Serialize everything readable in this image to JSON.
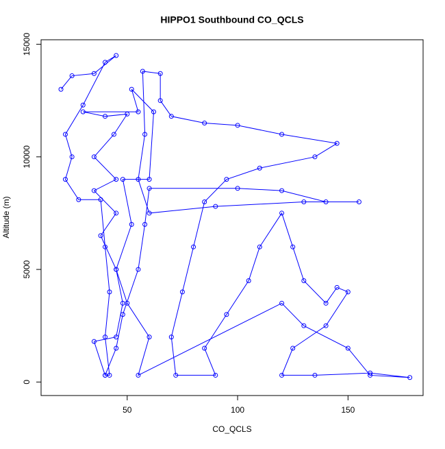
{
  "chart_data": {
    "type": "scatter",
    "title": "HIPPO1 Southbound CO_QCLS",
    "x_label": "CO_QCLS",
    "y_label": "Altitude (m)",
    "color": "#0000ff",
    "connect": true,
    "x": [
      20,
      25,
      35,
      45,
      40,
      30,
      22,
      25,
      22,
      28,
      38,
      40,
      42,
      40,
      42,
      40,
      45,
      48,
      55,
      58,
      60,
      100,
      120,
      140,
      155,
      130,
      90,
      60,
      55,
      58,
      57,
      65,
      65,
      70,
      85,
      100,
      120,
      145,
      135,
      110,
      95,
      85,
      80,
      75,
      70,
      72,
      90,
      85,
      95,
      105,
      110,
      120,
      125,
      130,
      140,
      145,
      150,
      140,
      125,
      120,
      135,
      160,
      178,
      160,
      150,
      130,
      120,
      55,
      60,
      50,
      45,
      52,
      48,
      60,
      62,
      52,
      55,
      30,
      40,
      50,
      44,
      35,
      45,
      35,
      45,
      38,
      45,
      48,
      45,
      35,
      40
    ],
    "y": [
      13000,
      13600,
      13700,
      14500,
      14200,
      12300,
      11000,
      10000,
      9000,
      8100,
      8100,
      6000,
      4000,
      2000,
      300,
      300,
      1500,
      3000,
      5000,
      7000,
      8600,
      8600,
      8500,
      8000,
      8000,
      8000,
      7800,
      7500,
      9000,
      11000,
      13800,
      13700,
      12500,
      11800,
      11500,
      11400,
      11000,
      10600,
      10000,
      9500,
      9000,
      8000,
      6000,
      4000,
      2000,
      300,
      300,
      1500,
      3000,
      4500,
      6000,
      7500,
      6000,
      4500,
      3500,
      4200,
      4000,
      2500,
      1500,
      300,
      300,
      400,
      200,
      300,
      1500,
      2500,
      3500,
      300,
      2000,
      3500,
      5000,
      7000,
      9000,
      9000,
      12000,
      13000,
      12000,
      12000,
      11800,
      11900,
      11000,
      10000,
      9000,
      8500,
      7500,
      6500,
      5000,
      3500,
      2000,
      1800,
      300
    ],
    "xlim": [
      11,
      184
    ],
    "ylim": [
      -600,
      15200
    ],
    "xticks": [
      50,
      100,
      150
    ],
    "yticks": [
      0,
      5000,
      10000,
      15000
    ]
  }
}
